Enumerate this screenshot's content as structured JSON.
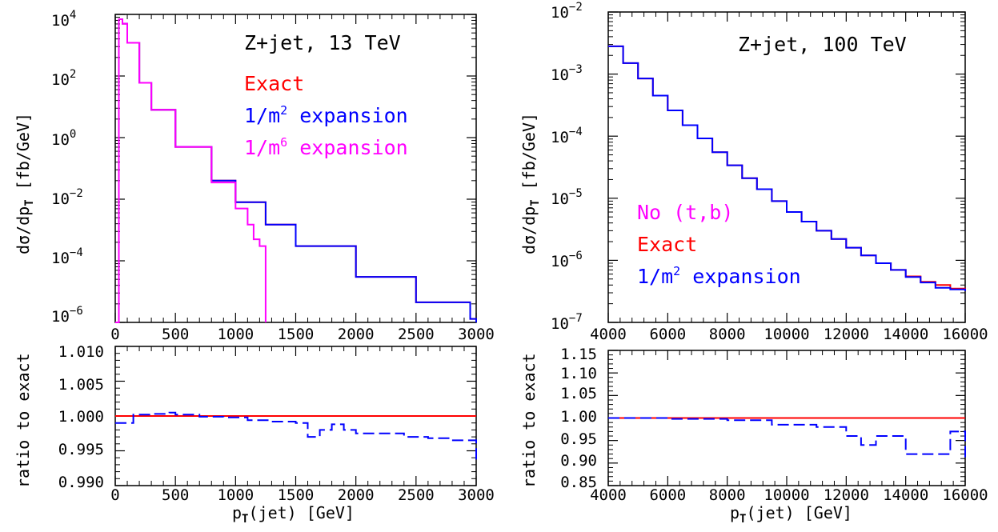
{
  "colors": {
    "exact": "#ff0000",
    "m2": "#0000ff",
    "m6": "#ff00ff",
    "not_b": "#ff00ff"
  },
  "chart_data": [
    {
      "type": "line",
      "panel": "main-left",
      "log_y": true,
      "xlim": [
        0,
        3000
      ],
      "ylim": [
        1e-06,
        10000.0
      ],
      "ylabel": "dσ/dp_T [fb/GeV]",
      "y_tick_labels": [
        "10^4",
        "10^2",
        "10^0",
        "10^-2",
        "10^-4",
        "10^-6"
      ],
      "x_tick_labels": [
        "0",
        "500",
        "1000",
        "1500",
        "2000",
        "2500",
        "3000"
      ],
      "annotation": "Z+jet, 13 TeV",
      "legend": [
        "Exact",
        "1/m^2 expansion",
        "1/m^6 expansion"
      ],
      "series": [
        {
          "name": "Exact",
          "color": "exact",
          "x": [
            0,
            30,
            60,
            100,
            200,
            300,
            500,
            800,
            1000,
            1250,
            1500,
            2000,
            2500,
            2950,
            3000
          ],
          "y": [
            5e-07,
            7000,
            5000,
            1200,
            60,
            8,
            0.5,
            0.04,
            0.008,
            0.0015,
            0.0003,
            3e-05,
            4.5e-06,
            1.3e-06,
            5e-07
          ]
        },
        {
          "name": "1/m^2 expansion",
          "color": "m2",
          "x": [
            0,
            30,
            60,
            100,
            200,
            300,
            500,
            800,
            1000,
            1250,
            1500,
            2000,
            2500,
            2950,
            3000
          ],
          "y": [
            5e-07,
            7000,
            5000,
            1200,
            60,
            8,
            0.5,
            0.04,
            0.008,
            0.0015,
            0.0003,
            3e-05,
            4.5e-06,
            1.3e-06,
            5e-07
          ]
        },
        {
          "name": "1/m^6 expansion",
          "color": "m6",
          "x": [
            0,
            30,
            60,
            100,
            200,
            300,
            500,
            800,
            1000,
            1100,
            1150,
            1200,
            1250
          ],
          "y": [
            5e-07,
            7000,
            5000,
            1200,
            60,
            8,
            0.5,
            0.035,
            0.005,
            0.0015,
            0.0005,
            0.0003,
            1e-06
          ]
        }
      ]
    },
    {
      "type": "line",
      "panel": "ratio-left",
      "xlim": [
        0,
        3000
      ],
      "ylim": [
        0.99,
        1.01
      ],
      "xlabel": "p_T(jet) [GeV]",
      "ylabel": "ratio to exact",
      "y_tick_labels": [
        "1.010",
        "1.005",
        "1.000",
        "0.995",
        "0.990"
      ],
      "x_tick_labels": [
        "0",
        "500",
        "1000",
        "1500",
        "2000",
        "2500",
        "3000"
      ],
      "series": [
        {
          "name": "Exact",
          "color": "exact",
          "x": [
            0,
            3000
          ],
          "y": [
            1.0,
            1.0
          ]
        },
        {
          "name": "1/m^2 expansion",
          "color": "m2",
          "x": [
            0,
            150,
            300,
            450,
            500,
            700,
            900,
            1100,
            1300,
            1500,
            1600,
            1700,
            1800,
            1900,
            2000,
            2200,
            2400,
            2600,
            2800,
            3000
          ],
          "y": [
            0.999,
            1.0002,
            1.0003,
            1.0005,
            1.0002,
            0.9999,
            0.9998,
            0.9994,
            0.9992,
            0.999,
            0.997,
            0.998,
            0.9988,
            0.998,
            0.9975,
            0.9975,
            0.997,
            0.9968,
            0.9965,
            0.9935
          ]
        }
      ]
    },
    {
      "type": "line",
      "panel": "main-right",
      "log_y": true,
      "xlim": [
        4000,
        16000
      ],
      "ylim": [
        1e-07,
        0.01
      ],
      "ylabel": "dσ/dp_T [fb/GeV]",
      "y_tick_labels": [
        "10^-2",
        "10^-3",
        "10^-4",
        "10^-5",
        "10^-6",
        "10^-7"
      ],
      "x_tick_labels": [
        "4000",
        "6000",
        "8000",
        "10000",
        "12000",
        "14000",
        "16000"
      ],
      "annotation": "Z+jet, 100 TeV",
      "legend": [
        "No (t,b)",
        "Exact",
        "1/m^2 expansion"
      ],
      "series": [
        {
          "name": "Exact",
          "color": "exact",
          "x": [
            4000,
            4500,
            5000,
            5500,
            6000,
            6500,
            7000,
            7500,
            8000,
            8500,
            9000,
            9500,
            10000,
            10500,
            11000,
            11500,
            12000,
            12500,
            13000,
            13500,
            14000,
            14500,
            15000,
            15500,
            16000
          ],
          "y": [
            0.0028,
            0.0015,
            0.00085,
            0.00045,
            0.00026,
            0.00015,
            9.2e-05,
            5.5e-05,
            3.4e-05,
            2.1e-05,
            1.4e-05,
            9e-06,
            6e-06,
            4.2e-06,
            3e-06,
            2.2e-06,
            1.6e-06,
            1.2e-06,
            9e-07,
            7e-07,
            5.5e-07,
            4.5e-07,
            4e-07,
            3.5e-07,
            3.3e-07
          ]
        },
        {
          "name": "1/m^2 expansion",
          "color": "m2",
          "x": [
            4000,
            4500,
            5000,
            5500,
            6000,
            6500,
            7000,
            7500,
            8000,
            8500,
            9000,
            9500,
            10000,
            10500,
            11000,
            11500,
            12000,
            12500,
            13000,
            13500,
            14000,
            14500,
            15000,
            15500,
            16000
          ],
          "y": [
            0.0028,
            0.0015,
            0.00085,
            0.00045,
            0.00026,
            0.00015,
            9.2e-05,
            5.5e-05,
            3.4e-05,
            2.1e-05,
            1.4e-05,
            9e-06,
            6e-06,
            4.2e-06,
            3e-06,
            2.2e-06,
            1.6e-06,
            1.2e-06,
            9e-07,
            7e-07,
            5.4e-07,
            4.4e-07,
            3.6e-07,
            3.4e-07,
            3.2e-07
          ]
        }
      ]
    },
    {
      "type": "line",
      "panel": "ratio-right",
      "xlim": [
        4000,
        16000
      ],
      "ylim": [
        0.85,
        1.15
      ],
      "xlabel": "p_T(jet) [GeV]",
      "ylabel": "ratio to exact",
      "y_tick_labels": [
        "1.15",
        "1.10",
        "1.05",
        "1.00",
        "0.95",
        "0.90",
        "0.85"
      ],
      "x_tick_labels": [
        "4000",
        "6000",
        "8000",
        "10000",
        "12000",
        "14000",
        "16000"
      ],
      "series": [
        {
          "name": "Exact",
          "color": "exact",
          "x": [
            4000,
            16000
          ],
          "y": [
            1.0,
            1.0
          ]
        },
        {
          "name": "1/m^2 expansion",
          "color": "m2",
          "x": [
            4000,
            6000,
            8000,
            9500,
            11000,
            12000,
            12500,
            13000,
            13500,
            14000,
            15000,
            15500,
            16000
          ],
          "y": [
            1.0,
            0.998,
            0.995,
            0.985,
            0.98,
            0.96,
            0.94,
            0.96,
            0.96,
            0.92,
            0.92,
            0.97,
            0.91
          ]
        }
      ]
    }
  ]
}
